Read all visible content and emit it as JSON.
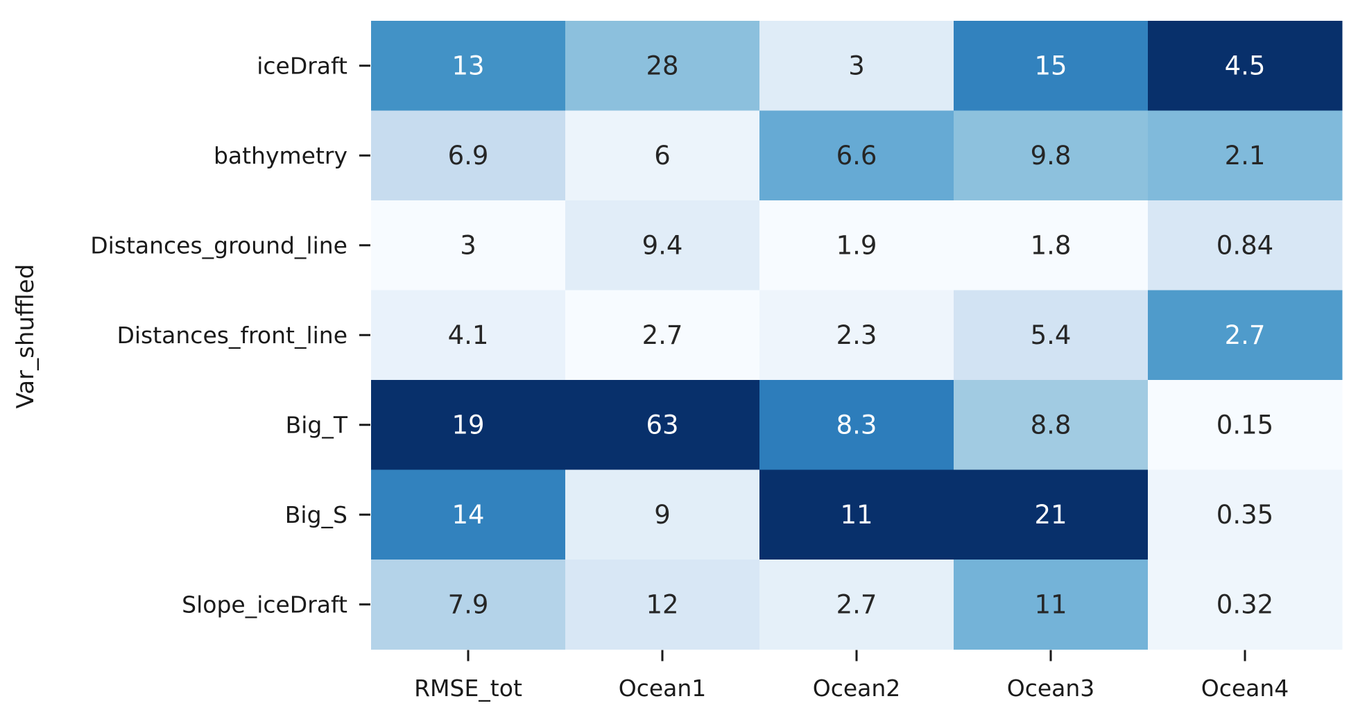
{
  "chart_data": {
    "type": "heatmap",
    "title": "",
    "xlabel": "",
    "ylabel": "Var_shuffled",
    "colormap": "Blues",
    "colorbar": false,
    "columns": [
      "RMSE_tot",
      "Ocean1",
      "Ocean2",
      "Ocean3",
      "Ocean4"
    ],
    "rows": [
      "iceDraft",
      "bathymetry",
      "Distances_ground_line",
      "Distances_front_line",
      "Big_T",
      "Big_S",
      "Slope_iceDraft"
    ],
    "values": [
      [
        13,
        28,
        3,
        15,
        4.5
      ],
      [
        6.9,
        6,
        6.6,
        9.8,
        2.1
      ],
      [
        3,
        9.4,
        1.9,
        1.8,
        0.84
      ],
      [
        4.1,
        2.7,
        2.3,
        5.4,
        2.7
      ],
      [
        19,
        63,
        8.3,
        8.8,
        0.15
      ],
      [
        14,
        9,
        11,
        21,
        0.35
      ],
      [
        7.9,
        12,
        2.7,
        11,
        0.32
      ]
    ],
    "labels": [
      [
        "13",
        "28",
        "3",
        "15",
        "4.5"
      ],
      [
        "6.9",
        "6",
        "6.6",
        "9.8",
        "2.1"
      ],
      [
        "3",
        "9.4",
        "1.9",
        "1.8",
        "0.84"
      ],
      [
        "4.1",
        "2.7",
        "2.3",
        "5.4",
        "2.7"
      ],
      [
        "19",
        "63",
        "8.3",
        "8.8",
        "0.15"
      ],
      [
        "14",
        "9",
        "11",
        "21",
        "0.35"
      ],
      [
        "7.9",
        "12",
        "2.7",
        "11",
        "0.32"
      ]
    ],
    "column_ranges": [
      [
        3,
        19
      ],
      [
        2.7,
        63
      ],
      [
        1.9,
        11
      ],
      [
        1.8,
        21
      ],
      [
        0.15,
        4.5
      ]
    ],
    "colorscale": [
      "#f7fbff",
      "#deebf7",
      "#c6dbef",
      "#9ecae1",
      "#6baed6",
      "#4292c6",
      "#2171b5",
      "#08519c",
      "#08306b"
    ],
    "text_colors": {
      "dark": "#262626",
      "light": "#ffffff"
    }
  }
}
